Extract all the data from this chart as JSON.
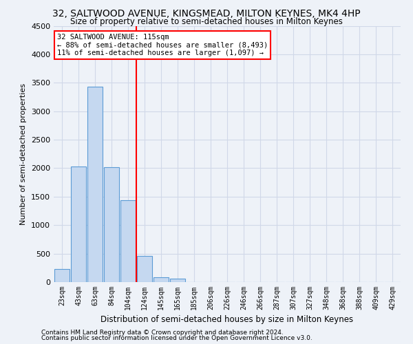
{
  "title": "32, SALTWOOD AVENUE, KINGSMEAD, MILTON KEYNES, MK4 4HP",
  "subtitle": "Size of property relative to semi-detached houses in Milton Keynes",
  "xlabel": "Distribution of semi-detached houses by size in Milton Keynes",
  "ylabel": "Number of semi-detached properties",
  "footer_line1": "Contains HM Land Registry data © Crown copyright and database right 2024.",
  "footer_line2": "Contains public sector information licensed under the Open Government Licence v3.0.",
  "annotation_title": "32 SALTWOOD AVENUE: 115sqm",
  "annotation_line1": "← 88% of semi-detached houses are smaller (8,493)",
  "annotation_line2": "11% of semi-detached houses are larger (1,097) →",
  "bar_labels": [
    "23sqm",
    "43sqm",
    "63sqm",
    "84sqm",
    "104sqm",
    "124sqm",
    "145sqm",
    "165sqm",
    "185sqm",
    "206sqm",
    "226sqm",
    "246sqm",
    "266sqm",
    "287sqm",
    "307sqm",
    "327sqm",
    "348sqm",
    "368sqm",
    "388sqm",
    "409sqm",
    "429sqm"
  ],
  "bar_values": [
    230,
    2030,
    3430,
    2020,
    1440,
    460,
    90,
    60,
    0,
    0,
    0,
    0,
    0,
    0,
    0,
    0,
    0,
    0,
    0,
    0,
    0
  ],
  "bar_color": "#c5d8f0",
  "bar_edge_color": "#5b9bd5",
  "vline_x_index": 4.5,
  "vline_color": "red",
  "ylim": [
    0,
    4500
  ],
  "yticks": [
    0,
    500,
    1000,
    1500,
    2000,
    2500,
    3000,
    3500,
    4000,
    4500
  ],
  "annotation_box_color": "white",
  "annotation_box_edge_color": "red",
  "grid_color": "#d0d8e8",
  "background_color": "#eef2f8",
  "title_fontsize": 10,
  "subtitle_fontsize": 8.5,
  "ylabel_fontsize": 8,
  "xlabel_fontsize": 8.5,
  "footer_fontsize": 6.5,
  "annotation_fontsize": 7.5
}
